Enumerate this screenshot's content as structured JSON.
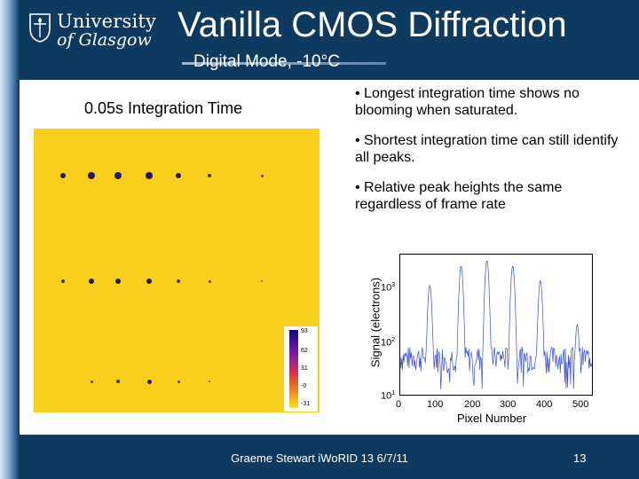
{
  "logo": {
    "line1": "University",
    "line2": "of Glasgow"
  },
  "title": "Vanilla CMOS Diffraction",
  "subtitle": "Digital Mode, -10°C",
  "image_label": "0.05s Integration Time",
  "bullets": [
    "• Longest integration time shows no blooming when saturated.",
    "• Shortest integration time can still identify all peaks.",
    "• Relative peak heights the same regardless of frame rate"
  ],
  "colorbar": {
    "ticks": [
      "93",
      "62",
      "31",
      "-0",
      "-31"
    ]
  },
  "chart_data": {
    "type": "line",
    "xlabel": "Pixel Number",
    "ylabel": "Signal (electrons)",
    "xlim": [
      0,
      520
    ],
    "ylim_log10": [
      1,
      3.5
    ],
    "yscale": "log",
    "xticks": [
      "0",
      "100",
      "200",
      "300",
      "400",
      "500"
    ],
    "yticks": [
      {
        "base": "10",
        "exp": "1"
      },
      {
        "base": "10",
        "exp": "2"
      },
      {
        "base": "10",
        "exp": "3"
      }
    ],
    "series": [
      {
        "peaks_x": [
          80,
          165,
          235,
          305,
          380,
          480
        ],
        "peaks_y": [
          900,
          2000,
          2500,
          2000,
          1100,
          180
        ],
        "baseline": 40
      }
    ]
  },
  "footer": {
    "author": "Graeme Stewart iWoRID 13 6/7/11",
    "page": "13"
  },
  "colors": {
    "background": "#0f3a5f",
    "image": "#f8cf1c",
    "spot": "#2a1466",
    "trace": "#3a4fd0"
  }
}
